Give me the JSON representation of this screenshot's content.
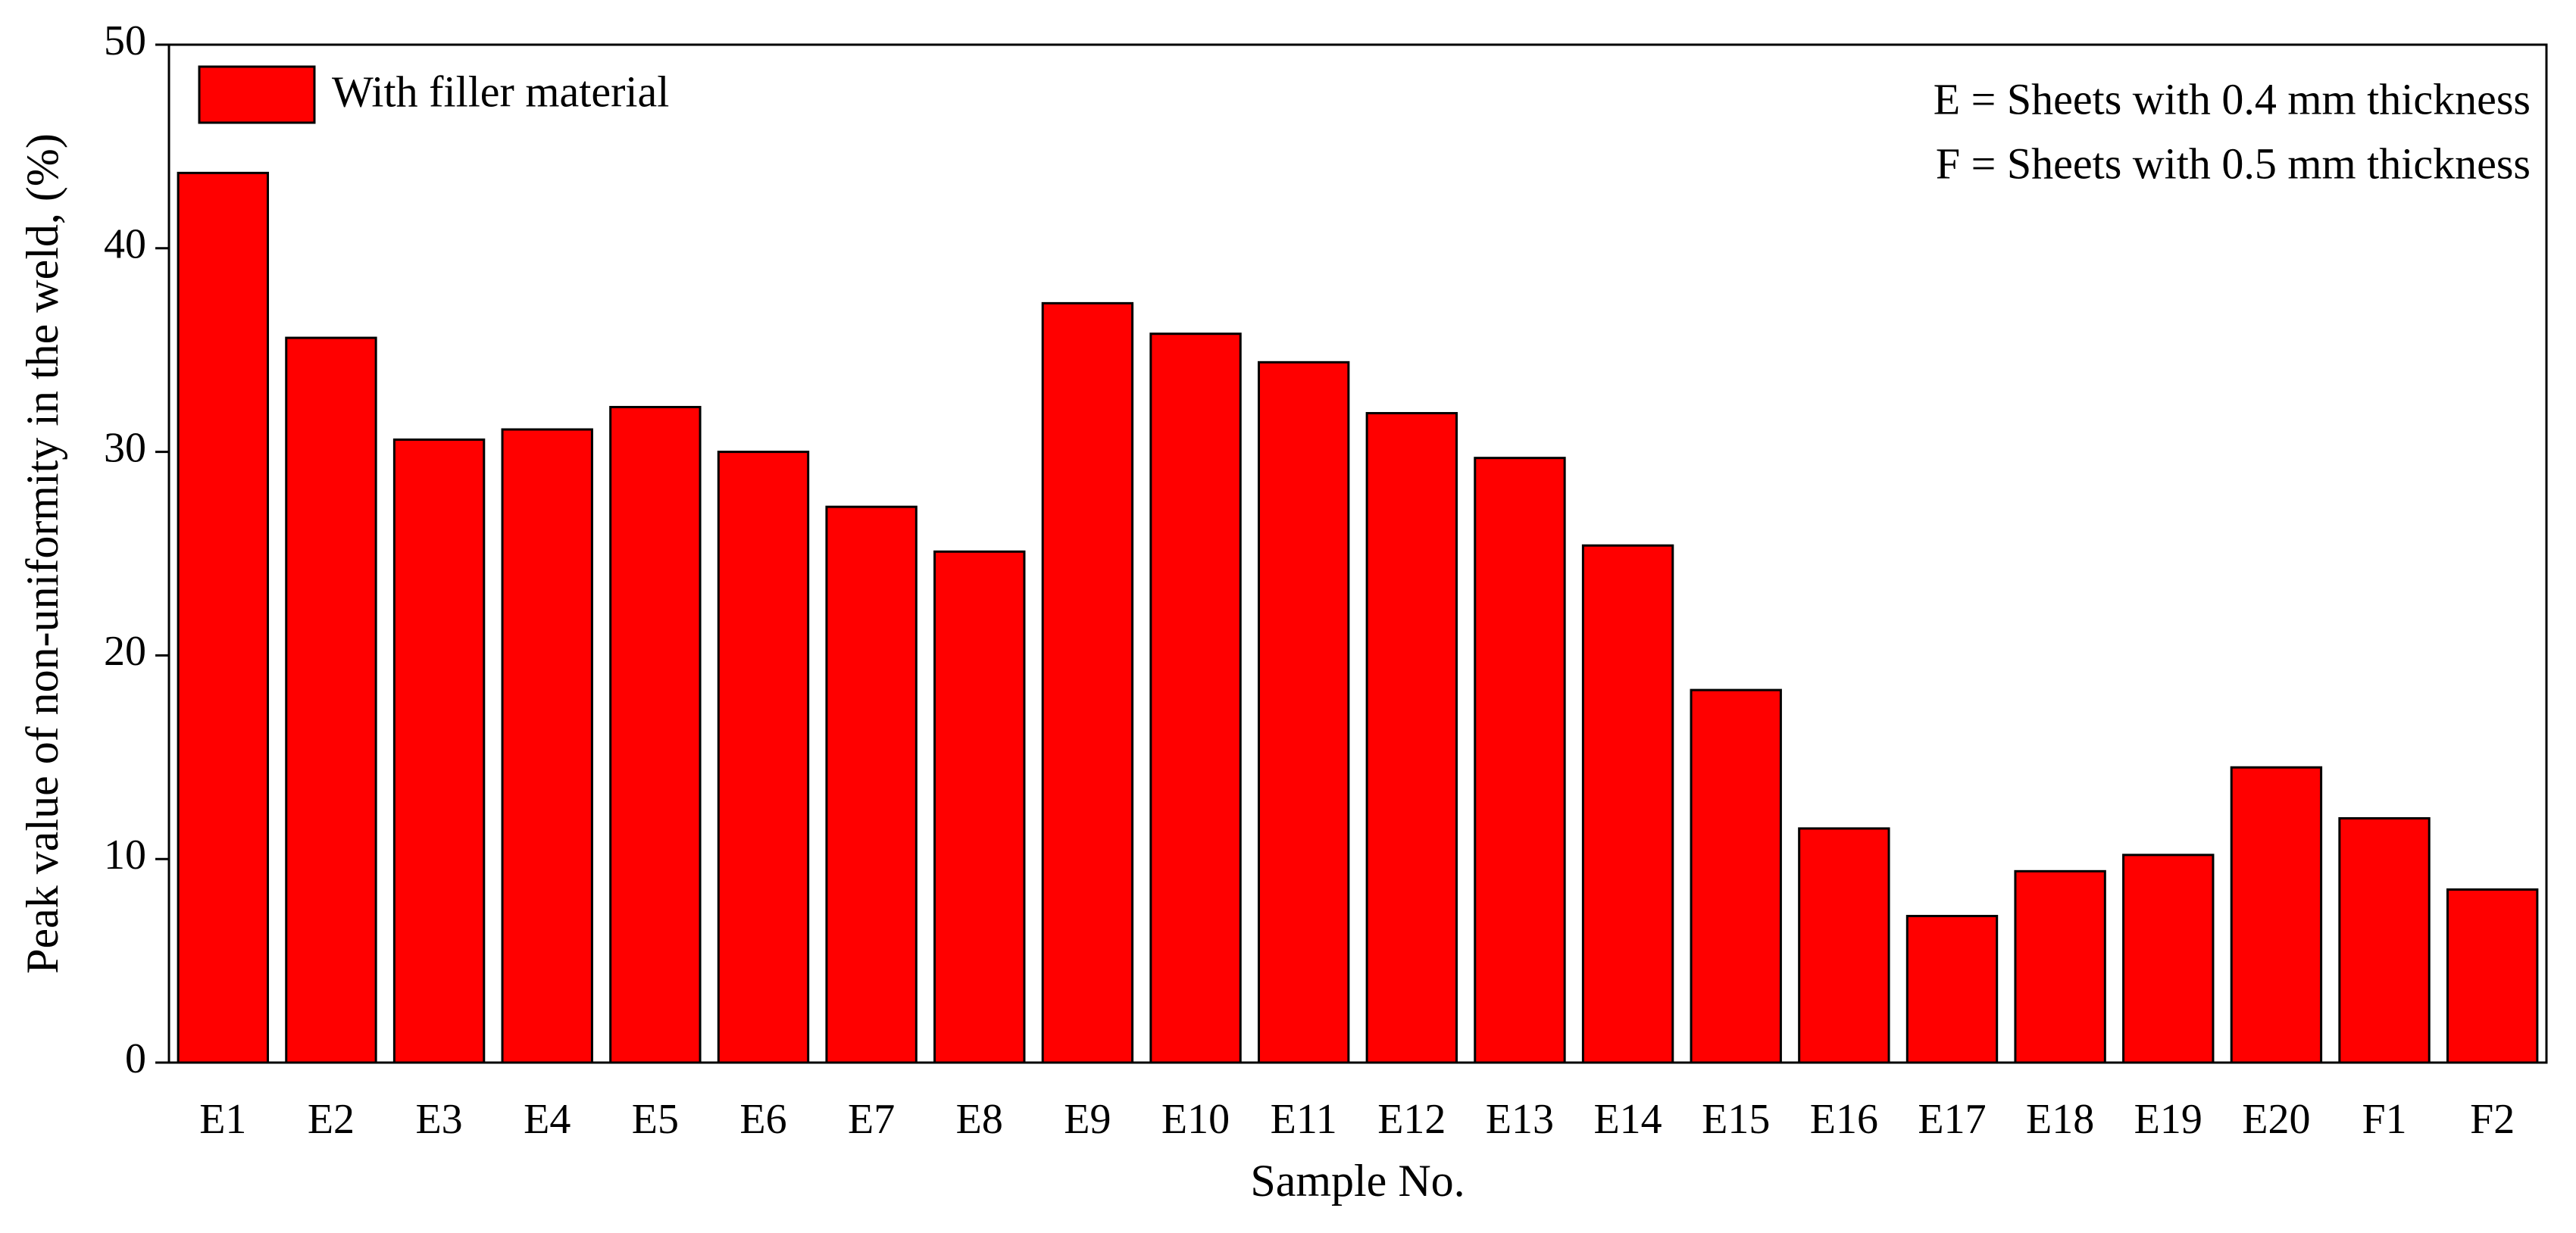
{
  "chart_data": {
    "type": "bar",
    "x_label": "Sample No.",
    "y_label": "Peak value of non-uniformity in the weld, (%)",
    "annotations": [
      "E = Sheets with 0.4 mm thickness",
      "F = Sheets with 0.5 mm thickness"
    ],
    "categories": [
      "E1",
      "E2",
      "E3",
      "E4",
      "E5",
      "E6",
      "E7",
      "E8",
      "E9",
      "E10",
      "E11",
      "E12",
      "E13",
      "E14",
      "E15",
      "E16",
      "E17",
      "E18",
      "E19",
      "E20",
      "F1",
      "F2"
    ],
    "series": [
      {
        "name": "With filler material",
        "color": "#ff0000",
        "values": [
          43.7,
          35.6,
          30.6,
          31.1,
          32.2,
          30.0,
          27.3,
          25.1,
          37.3,
          35.8,
          34.4,
          31.9,
          29.7,
          25.4,
          18.3,
          11.5,
          7.2,
          9.4,
          10.2,
          14.5,
          12.0,
          8.5
        ]
      }
    ],
    "ylim": [
      0,
      50
    ],
    "yticks": [
      0,
      10,
      20,
      30,
      40,
      50
    ],
    "grid": false,
    "legend": "upper left"
  }
}
